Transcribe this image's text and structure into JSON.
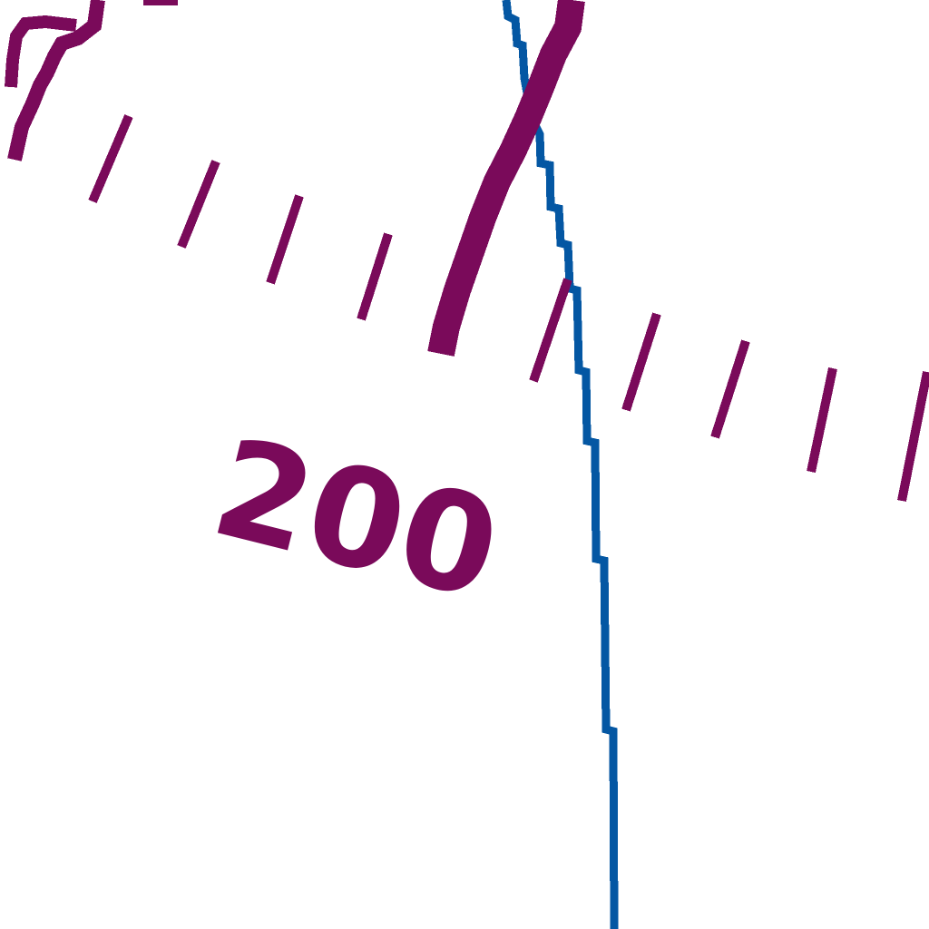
{
  "map": {
    "colors": {
      "background": "#ffffff",
      "contour": "#7a0a5a",
      "stream": "#0457a3"
    },
    "contour_label": "200",
    "features": {
      "index_contour": "index-contour-line",
      "intermediate_contour": "intermediate-contour-line",
      "stream": "stream-line"
    }
  }
}
